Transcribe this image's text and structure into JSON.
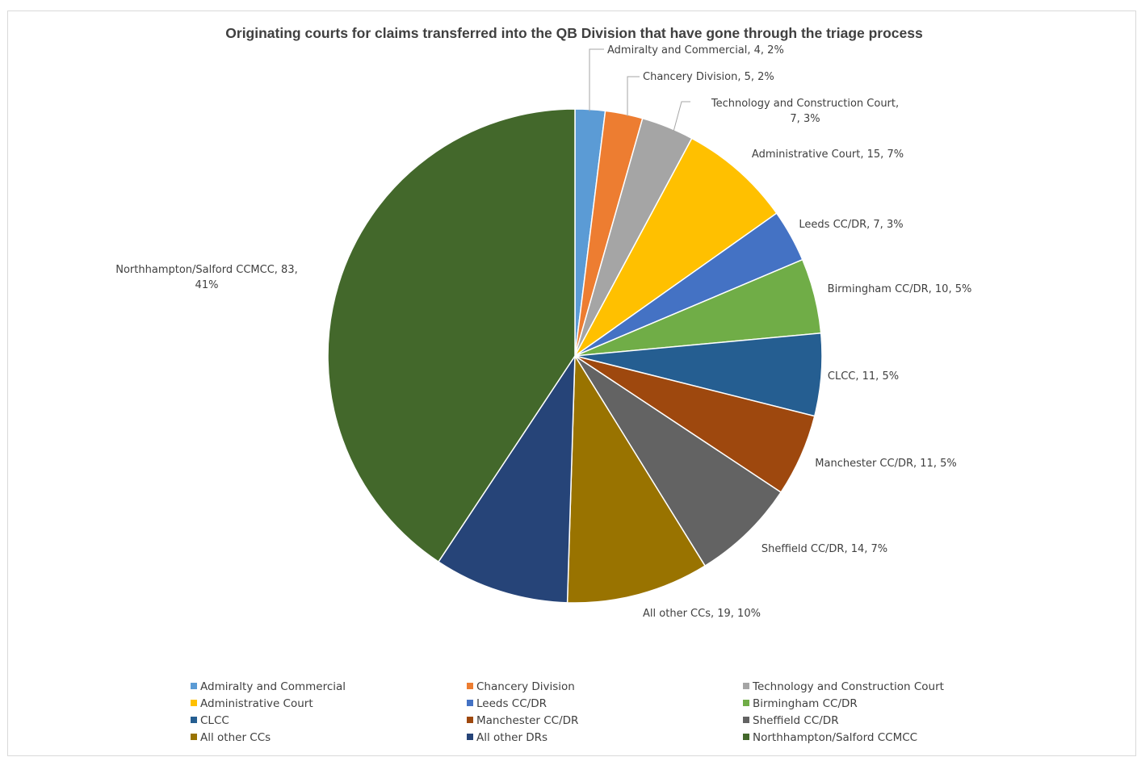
{
  "chart_data": {
    "type": "pie",
    "title": "Originating courts for claims transferred into the QB Division that have gone through the triage process",
    "legend_position": "bottom",
    "slices": [
      {
        "name": "Admiralty and Commercial",
        "value": 4,
        "percent": "2%",
        "color": "#5b9bd5",
        "label": [
          "Admiralty and Commercial, 4, 2%"
        ]
      },
      {
        "name": "Chancery Division",
        "value": 5,
        "percent": "2%",
        "color": "#ed7d31",
        "label": [
          "Chancery Division, 5, 2%"
        ]
      },
      {
        "name": "Technology and Construction Court",
        "value": 7,
        "percent": "3%",
        "color": "#a5a5a5",
        "label": [
          "Technology and Construction Court,",
          "7, 3%"
        ]
      },
      {
        "name": "Administrative Court",
        "value": 15,
        "percent": "7%",
        "color": "#ffc000",
        "label": [
          "Administrative Court, 15, 7%"
        ]
      },
      {
        "name": "Leeds CC/DR",
        "value": 7,
        "percent": "3%",
        "color": "#4472c4",
        "label": [
          "Leeds CC/DR, 7, 3%"
        ]
      },
      {
        "name": "Birmingham CC/DR",
        "value": 10,
        "percent": "5%",
        "color": "#70ad47",
        "label": [
          "Birmingham CC/DR, 10, 5%"
        ]
      },
      {
        "name": "CLCC",
        "value": 11,
        "percent": "5%",
        "color": "#255e91",
        "label": [
          "CLCC, 11, 5%"
        ]
      },
      {
        "name": "Manchester CC/DR",
        "value": 11,
        "percent": "5%",
        "color": "#9e480e",
        "label": [
          "Manchester CC/DR, 11, 5%"
        ]
      },
      {
        "name": "Sheffield CC/DR",
        "value": 14,
        "percent": "7%",
        "color": "#636363",
        "label": [
          "Sheffield CC/DR, 14, 7%"
        ]
      },
      {
        "name": "All other CCs",
        "value": 19,
        "percent": "10%",
        "color": "#997300",
        "label": [
          "All other CCs, 19, 10%"
        ]
      },
      {
        "name": "All other DRs",
        "value": 18,
        "percent": "9%",
        "color": "#264478",
        "label": []
      },
      {
        "name": "Northhampton/Salford CCMCC",
        "value": 83,
        "percent": "41%",
        "color": "#43682b",
        "label": [
          "Northhampton/Salford CCMCC, 83,",
          "41%"
        ]
      }
    ]
  }
}
